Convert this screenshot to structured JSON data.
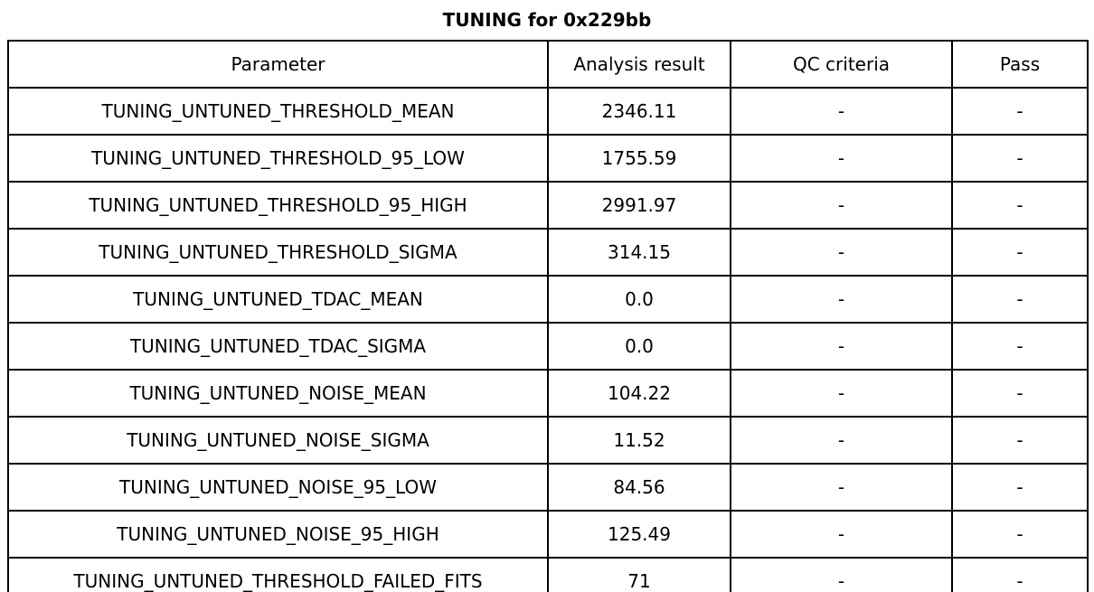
{
  "title": "TUNING for 0x229bb",
  "table": {
    "headers": [
      "Parameter",
      "Analysis result",
      "QC criteria",
      "Pass"
    ],
    "rows": [
      {
        "parameter": "TUNING_UNTUNED_THRESHOLD_MEAN",
        "analysis_result": "2346.11",
        "qc_criteria": "-",
        "pass": "-"
      },
      {
        "parameter": "TUNING_UNTUNED_THRESHOLD_95_LOW",
        "analysis_result": "1755.59",
        "qc_criteria": "-",
        "pass": "-"
      },
      {
        "parameter": "TUNING_UNTUNED_THRESHOLD_95_HIGH",
        "analysis_result": "2991.97",
        "qc_criteria": "-",
        "pass": "-"
      },
      {
        "parameter": "TUNING_UNTUNED_THRESHOLD_SIGMA",
        "analysis_result": "314.15",
        "qc_criteria": "-",
        "pass": "-"
      },
      {
        "parameter": "TUNING_UNTUNED_TDAC_MEAN",
        "analysis_result": "0.0",
        "qc_criteria": "-",
        "pass": "-"
      },
      {
        "parameter": "TUNING_UNTUNED_TDAC_SIGMA",
        "analysis_result": "0.0",
        "qc_criteria": "-",
        "pass": "-"
      },
      {
        "parameter": "TUNING_UNTUNED_NOISE_MEAN",
        "analysis_result": "104.22",
        "qc_criteria": "-",
        "pass": "-"
      },
      {
        "parameter": "TUNING_UNTUNED_NOISE_SIGMA",
        "analysis_result": "11.52",
        "qc_criteria": "-",
        "pass": "-"
      },
      {
        "parameter": "TUNING_UNTUNED_NOISE_95_LOW",
        "analysis_result": "84.56",
        "qc_criteria": "-",
        "pass": "-"
      },
      {
        "parameter": "TUNING_UNTUNED_NOISE_95_HIGH",
        "analysis_result": "125.49",
        "qc_criteria": "-",
        "pass": "-"
      },
      {
        "parameter": "TUNING_UNTUNED_THRESHOLD_FAILED_FITS",
        "analysis_result": "71",
        "qc_criteria": "-",
        "pass": "-"
      }
    ]
  },
  "chart_data": {
    "type": "table",
    "title": "TUNING for 0x229bb",
    "columns": [
      "Parameter",
      "Analysis result",
      "QC criteria",
      "Pass"
    ],
    "rows": [
      [
        "TUNING_UNTUNED_THRESHOLD_MEAN",
        "2346.11",
        "-",
        "-"
      ],
      [
        "TUNING_UNTUNED_THRESHOLD_95_LOW",
        "1755.59",
        "-",
        "-"
      ],
      [
        "TUNING_UNTUNED_THRESHOLD_95_HIGH",
        "2991.97",
        "-",
        "-"
      ],
      [
        "TUNING_UNTUNED_THRESHOLD_SIGMA",
        "314.15",
        "-",
        "-"
      ],
      [
        "TUNING_UNTUNED_TDAC_MEAN",
        "0.0",
        "-",
        "-"
      ],
      [
        "TUNING_UNTUNED_TDAC_SIGMA",
        "0.0",
        "-",
        "-"
      ],
      [
        "TUNING_UNTUNED_NOISE_MEAN",
        "104.22",
        "-",
        "-"
      ],
      [
        "TUNING_UNTUNED_NOISE_SIGMA",
        "11.52",
        "-",
        "-"
      ],
      [
        "TUNING_UNTUNED_NOISE_95_LOW",
        "84.56",
        "-",
        "-"
      ],
      [
        "TUNING_UNTUNED_NOISE_95_HIGH",
        "125.49",
        "-",
        "-"
      ],
      [
        "TUNING_UNTUNED_THRESHOLD_FAILED_FITS",
        "71",
        "-",
        "-"
      ]
    ]
  },
  "colors": {
    "background": "#ffffff",
    "border": "#000000",
    "text": "#000000"
  }
}
